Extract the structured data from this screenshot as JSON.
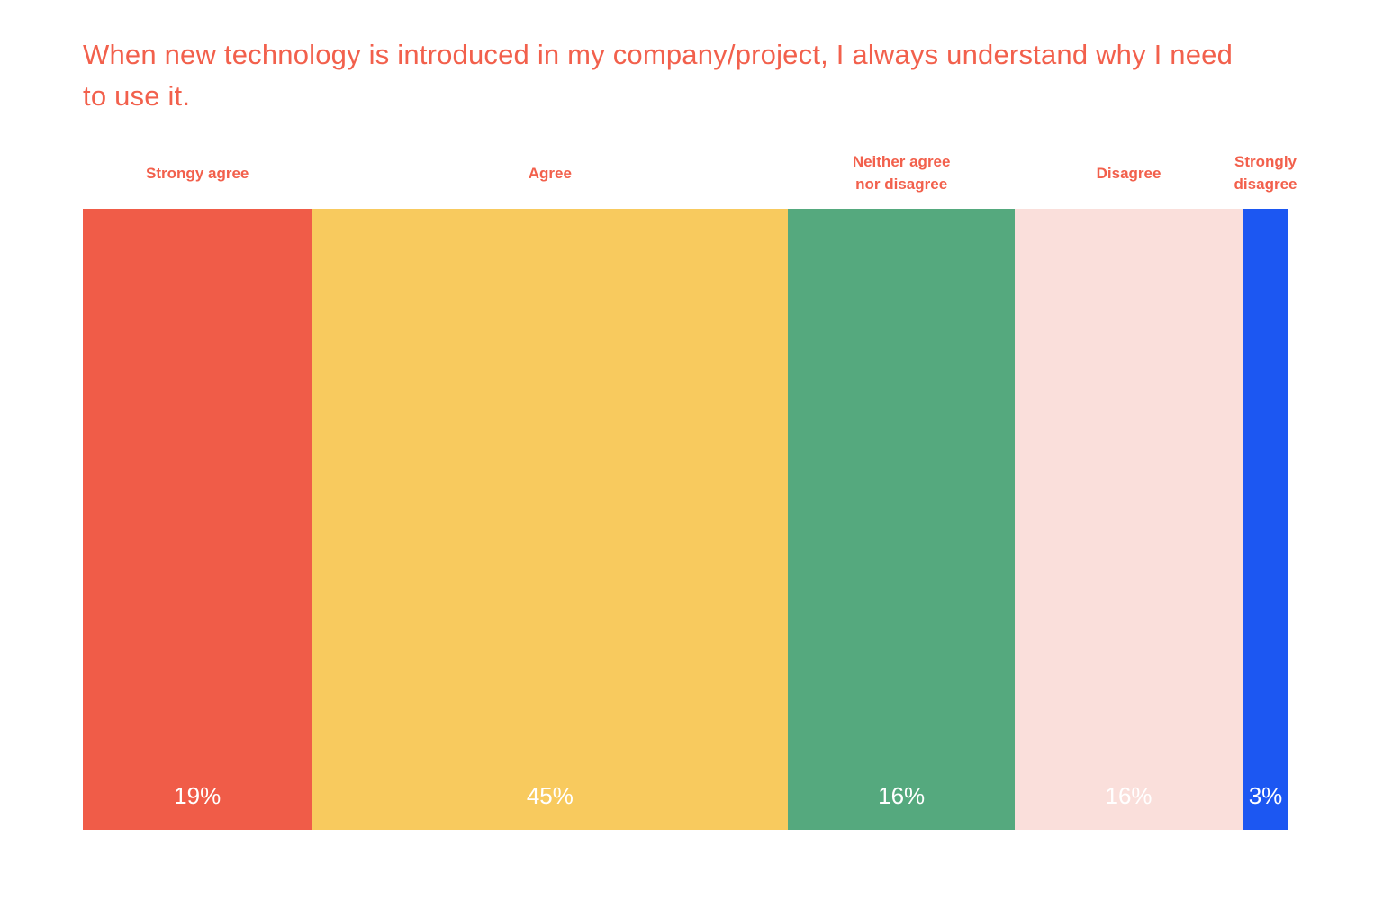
{
  "chart_data": {
    "type": "bar",
    "subtype": "horizontal-stacked-percentage",
    "title": "When new technology is introduced in my company/project, I always understand why I need to use it.",
    "categories": [
      "Strongy agree",
      "Agree",
      "Neither agree nor disagree",
      "Disagree",
      "Strongly disagree"
    ],
    "values": [
      19,
      45,
      16,
      16,
      3
    ],
    "unit": "%",
    "value_labels": [
      "19%",
      "45%",
      "16%",
      "16%",
      "3%"
    ],
    "category_label_lines": [
      [
        "Strongy agree"
      ],
      [
        "Agree"
      ],
      [
        "Neither agree",
        "nor disagree"
      ],
      [
        "Disagree"
      ],
      [
        "Strongly",
        "disagree"
      ]
    ],
    "segment_colors": [
      "#F05C48",
      "#F8CA5E",
      "#55A97E",
      "#FADFDB",
      "#1C57F2"
    ],
    "segment_display_widths_pct": [
      19.0,
      39.5,
      18.8,
      18.9,
      3.8
    ],
    "title_color": "#F2604C",
    "category_label_color": "#F2604C",
    "value_label_color": "#FFFFFF",
    "background_color": "#FFFFFF",
    "legend_position": "top-category-labels",
    "axes": "none",
    "grid": false
  }
}
